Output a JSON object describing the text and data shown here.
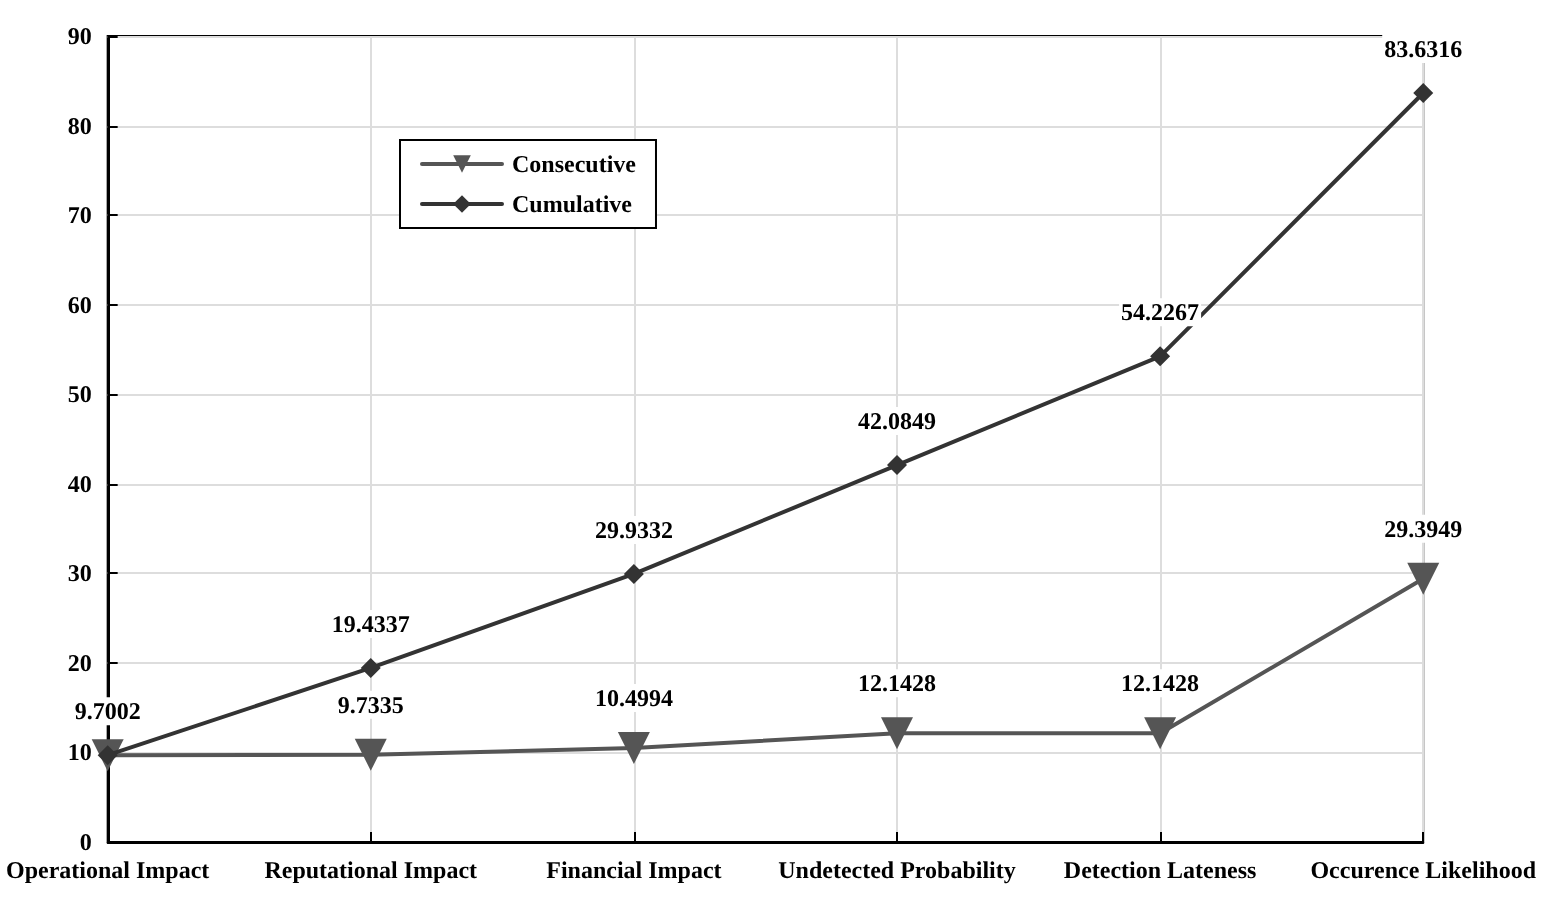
{
  "chart_data": {
    "type": "line",
    "categories": [
      "Operational Impact",
      "Reputational Impact",
      "Financial Impact",
      "Undetected Probability",
      "Detection Lateness",
      "Occurence Likelihood"
    ],
    "series": [
      {
        "name": "Consecutive",
        "color": "#555555",
        "marker": "triangle",
        "values": [
          9.7002,
          9.7335,
          10.4994,
          12.1428,
          12.1428,
          29.3949
        ],
        "value_labels": [
          null,
          "9.7335",
          "10.4994",
          "12.1428",
          "12.1428",
          "29.3949"
        ]
      },
      {
        "name": "Cumulative",
        "color": "#333333",
        "marker": "diamond",
        "values": [
          9.7002,
          19.4337,
          29.9332,
          42.0849,
          54.2267,
          83.6316
        ],
        "value_labels": [
          "9.7002",
          "19.4337",
          "29.9332",
          "42.0849",
          "54.2267",
          "83.6316"
        ]
      }
    ],
    "ylim": [
      0,
      90
    ],
    "yticks": [
      0,
      10,
      20,
      30,
      40,
      50,
      60,
      70,
      80,
      90
    ],
    "grid": true,
    "legend": "top left",
    "line_style": "solid"
  }
}
